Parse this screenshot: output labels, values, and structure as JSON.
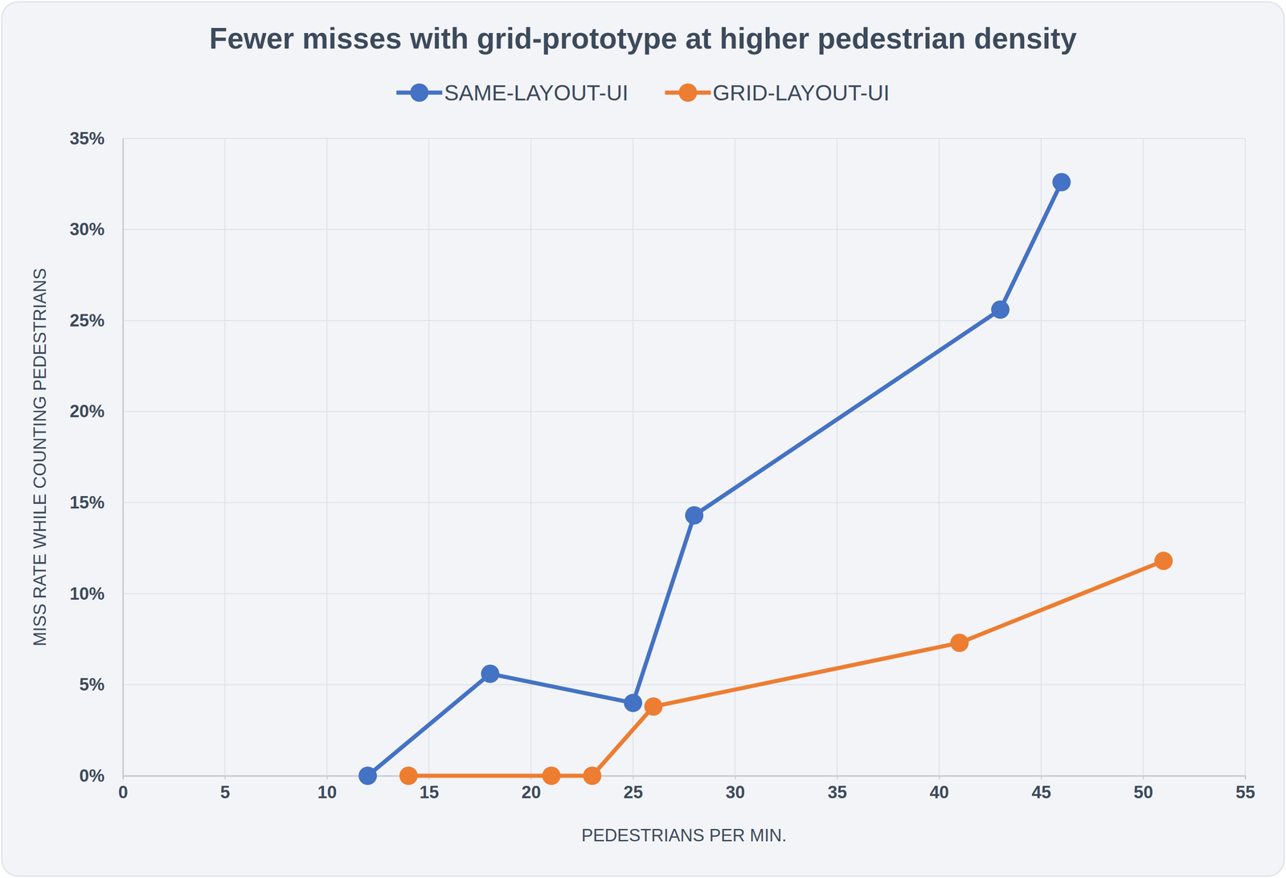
{
  "chart_data": {
    "type": "line",
    "title": "Fewer misses with grid-prototype at higher pedestrian density",
    "x_label": "PEDESTRIANS PER MIN.",
    "y_label": "MISS RATE WHILE COUNTING PEDESTRIANS",
    "series": [
      {
        "name": "SAME-LAYOUT-UI",
        "color": "#4472c4",
        "marker": "circle",
        "x": [
          12,
          18,
          25,
          28,
          43,
          46
        ],
        "values": [
          0,
          5.6,
          4.0,
          14.3,
          25.6,
          32.6
        ]
      },
      {
        "name": "GRID-LAYOUT-UI",
        "color": "#ed7d31",
        "marker": "circle",
        "x": [
          14,
          21,
          23,
          26,
          41,
          51
        ],
        "values": [
          0,
          0,
          0,
          3.8,
          7.3,
          11.8
        ]
      }
    ],
    "xlim": [
      0,
      55
    ],
    "xticks": [
      0,
      5,
      10,
      15,
      20,
      25,
      30,
      35,
      40,
      45,
      50,
      55
    ],
    "ylim": [
      0,
      35
    ],
    "yticks": [
      {
        "value": 0,
        "label": "0%"
      },
      {
        "value": 5,
        "label": "5%"
      },
      {
        "value": 10,
        "label": "10%"
      },
      {
        "value": 15,
        "label": "15%"
      },
      {
        "value": 20,
        "label": "20%"
      },
      {
        "value": 25,
        "label": "25%"
      },
      {
        "value": 30,
        "label": "30%"
      },
      {
        "value": 35,
        "label": "35%"
      }
    ],
    "grid": true,
    "legend": "top"
  }
}
